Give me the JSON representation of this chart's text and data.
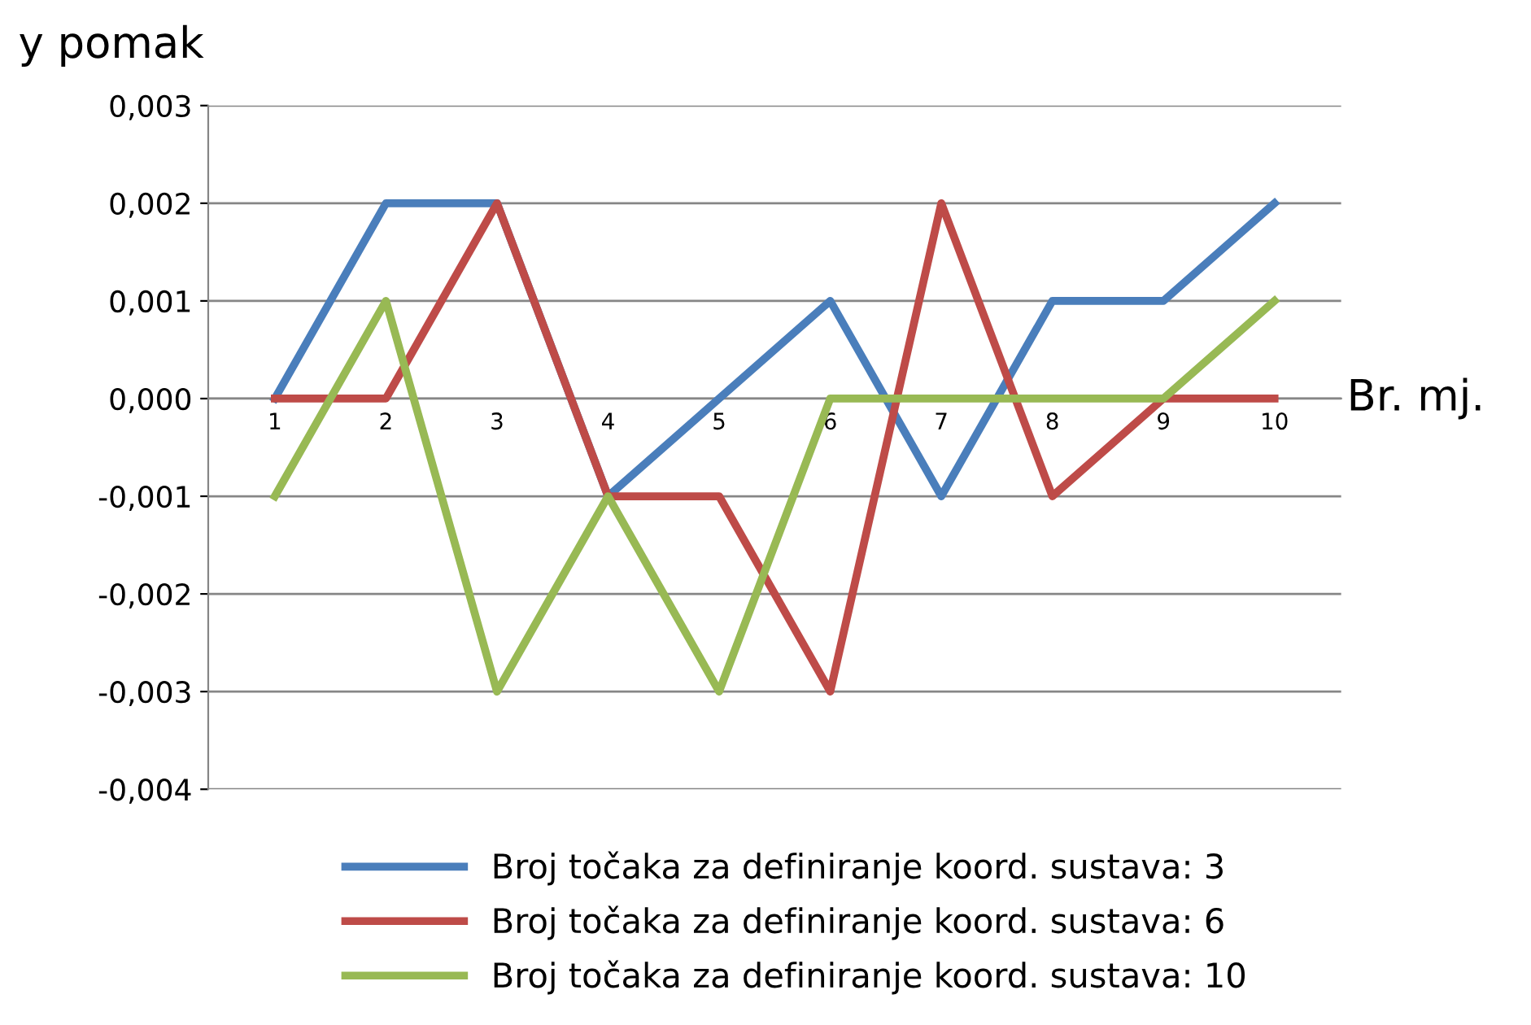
{
  "chart_data": {
    "type": "line",
    "ylabel": "y pomak",
    "xlabel": "Br. mj.",
    "categories": [
      "1",
      "2",
      "3",
      "4",
      "5",
      "6",
      "7",
      "8",
      "9",
      "10"
    ],
    "series": [
      {
        "name": "Broj točaka za definiranje koord. sustava: 3",
        "color": "#4a7ebb",
        "values": [
          0,
          0.002,
          0.002,
          -0.001,
          0,
          0.001,
          -0.001,
          0.001,
          0.001,
          0.002
        ]
      },
      {
        "name": "Broj točaka za definiranje koord. sustava: 6",
        "color": "#be4b48",
        "values": [
          0,
          0,
          0.002,
          -0.001,
          -0.001,
          -0.003,
          0.002,
          -0.001,
          0,
          0
        ]
      },
      {
        "name": "Broj točaka za definiranje koord. sustava: 10",
        "color": "#98b954",
        "values": [
          -0.001,
          0.001,
          -0.003,
          -0.001,
          -0.003,
          0,
          0,
          0,
          0,
          0.001
        ]
      }
    ],
    "ylim": [
      -0.004,
      0.003
    ],
    "yticks": [
      {
        "value": -0.004,
        "label": "-0,004"
      },
      {
        "value": -0.003,
        "label": "-0,003"
      },
      {
        "value": -0.002,
        "label": "-0,002"
      },
      {
        "value": -0.001,
        "label": "-0,001"
      },
      {
        "value": 0,
        "label": "0,000"
      },
      {
        "value": 0.001,
        "label": "0,001"
      },
      {
        "value": 0.002,
        "label": "0,002"
      },
      {
        "value": 0.003,
        "label": "0,003"
      }
    ],
    "grid": "y",
    "legend": "bottom",
    "marker": "none",
    "line_style": "solid"
  }
}
